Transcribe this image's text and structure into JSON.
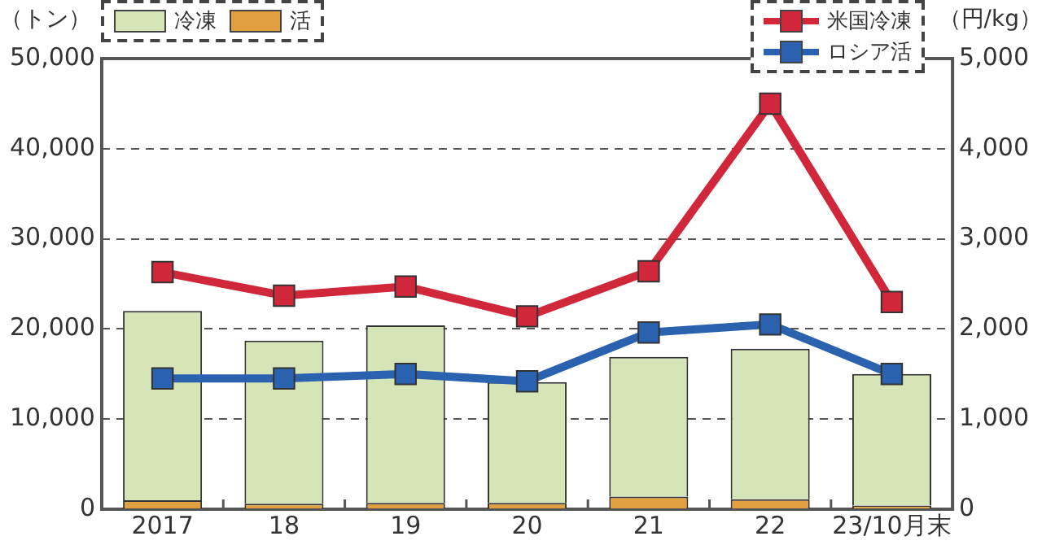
{
  "chart_data": {
    "type": "bar",
    "stacked": true,
    "ylabel": "（トン）",
    "y2label": "（円/kg）",
    "categories": [
      "2017",
      "18",
      "19",
      "20",
      "21",
      "22",
      "23/10月末"
    ],
    "ylim": [
      0,
      50000
    ],
    "yticks": [
      {
        "value": 0,
        "label": "0"
      },
      {
        "value": 10000,
        "label": "10,000"
      },
      {
        "value": 20000,
        "label": "20,000"
      },
      {
        "value": 30000,
        "label": "30,000"
      },
      {
        "value": 40000,
        "label": "40,000"
      },
      {
        "value": 50000,
        "label": "50,000"
      }
    ],
    "y2lim": [
      0,
      5000
    ],
    "y2ticks": [
      {
        "value": 0,
        "label": "0"
      },
      {
        "value": 1000,
        "label": "1,000"
      },
      {
        "value": 2000,
        "label": "2,000"
      },
      {
        "value": 3000,
        "label": "3,000"
      },
      {
        "value": 4000,
        "label": "4,000"
      },
      {
        "value": 5000,
        "label": "5,000"
      }
    ],
    "grid": "y",
    "legend": "top",
    "marker": "square",
    "series": [
      {
        "name": "活",
        "color": "#e0a040",
        "values": [
          1000,
          600,
          700,
          700,
          1400,
          1100,
          400
        ]
      },
      {
        "name": "冷凍",
        "color": "#d5e5b8",
        "values": [
          21000,
          18100,
          19700,
          13400,
          15500,
          16700,
          14600
        ]
      },
      {
        "name": "米国冷凍",
        "type": "line",
        "axis": "y2",
        "color": "#d0283a",
        "values": [
          2630,
          2370,
          2470,
          2140,
          2640,
          4500,
          2300
        ]
      },
      {
        "name": "ロシア活",
        "type": "line",
        "axis": "y2",
        "color": "#2a62b0",
        "values": [
          1450,
          1450,
          1500,
          1420,
          1960,
          2050,
          1500
        ]
      }
    ]
  }
}
